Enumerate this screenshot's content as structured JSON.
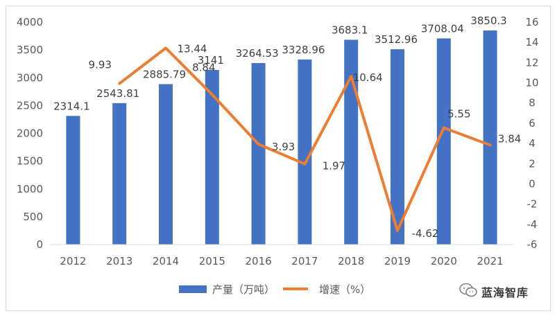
{
  "chart_data": {
    "type": "bar+line",
    "categories": [
      "2012",
      "2013",
      "2014",
      "2015",
      "2016",
      "2017",
      "2018",
      "2019",
      "2020",
      "2021"
    ],
    "series": [
      {
        "name": "产量（万吨）",
        "type": "bar",
        "axis": "left",
        "color": "#4472c4",
        "values": [
          2314.1,
          2543.81,
          2885.79,
          3141,
          3264.53,
          3328.96,
          3683.1,
          3512.96,
          3708.04,
          3850.3
        ],
        "labels": [
          "2314.1",
          "2543.81",
          "2885.79",
          "3141",
          "3264.53",
          "3328.96",
          "3683.1",
          "3512.96",
          "3708.04",
          "3850.3"
        ]
      },
      {
        "name": "增速（%）",
        "type": "line",
        "axis": "right",
        "color": "#ed7d31",
        "x": [
          "2013",
          "2014",
          "2015",
          "2016",
          "2017",
          "2018",
          "2019",
          "2020",
          "2021"
        ],
        "values": [
          9.93,
          13.44,
          8.84,
          3.93,
          1.97,
          10.64,
          -4.62,
          5.55,
          3.84
        ],
        "labels": [
          "9.93",
          "13.44",
          "8.84",
          "3.93",
          "1.97",
          "10.64",
          "-4.62",
          "5.55",
          "3.84"
        ]
      }
    ],
    "y_left": {
      "min": 0,
      "max": 4000,
      "step": 500,
      "ticks": [
        "0",
        "500",
        "1000",
        "1500",
        "2000",
        "2500",
        "3000",
        "3500",
        "4000"
      ]
    },
    "y_right": {
      "min": -6,
      "max": 16,
      "step": 2,
      "ticks": [
        "-6",
        "-4",
        "-2",
        "0",
        "2",
        "4",
        "6",
        "8",
        "10",
        "12",
        "14",
        "16"
      ]
    },
    "grid": false,
    "legend": {
      "placement": "bottom",
      "entries": [
        "产量（万吨）",
        "增速（%）"
      ]
    }
  },
  "watermark": {
    "text": "蓝海智库",
    "icon": "wechat-icon"
  }
}
